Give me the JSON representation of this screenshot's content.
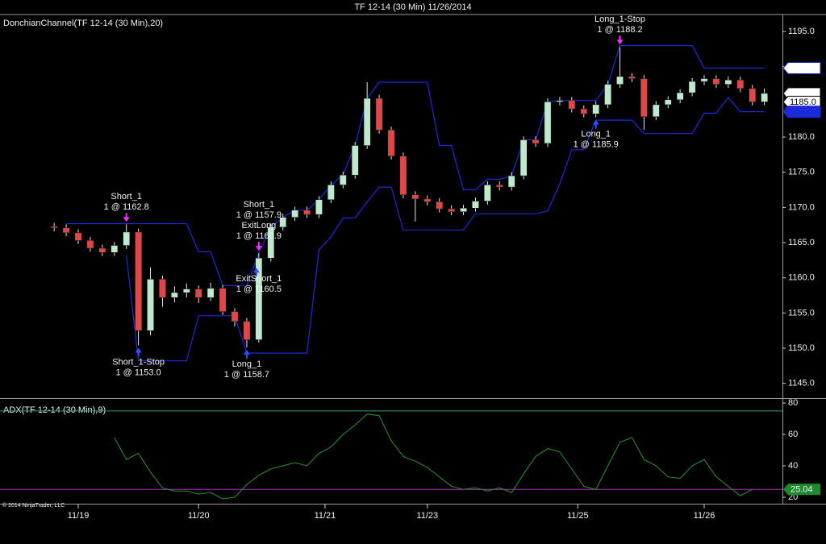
{
  "window_title": "TF 12-14 (30 Min)  11/26/2014",
  "copyright": "© 2014 NinjaTrader, LLC",
  "chart_data": [
    {
      "type": "candlestick",
      "title": "DonchianChannel(TF 12-14 (30 Min),20)",
      "xlim": [
        -4.5,
        60.5
      ],
      "xticks": [
        {
          "value": 2,
          "label": "11/19"
        },
        {
          "value": 12,
          "label": "11/20"
        },
        {
          "value": 22.5,
          "label": "11/21"
        },
        {
          "value": 31,
          "label": "11/23"
        },
        {
          "value": 43.5,
          "label": "11/25"
        },
        {
          "value": 54,
          "label": "11/26"
        }
      ],
      "ylim": [
        1142.9,
        1197.3
      ],
      "yticks": [
        {
          "value": 1145,
          "label": "1145.0"
        },
        {
          "value": 1150,
          "label": "1150.0"
        },
        {
          "value": 1155,
          "label": "1155.0"
        },
        {
          "value": 1160,
          "label": "1160.0"
        },
        {
          "value": 1165,
          "label": "1165.0"
        },
        {
          "value": 1170,
          "label": "1170.0"
        },
        {
          "value": 1175,
          "label": "1175.0"
        },
        {
          "value": 1180,
          "label": "1180.0"
        },
        {
          "value": 1185,
          "label": "1185.0"
        },
        {
          "value": 1190,
          "label": "1190.0"
        },
        {
          "value": 1195,
          "label": "1195.0"
        }
      ],
      "up_color": "#bfe8cc",
      "down_color": "#e04848",
      "wick_color": "#e8e8e8",
      "open": [
        1167.3,
        1167.1,
        1166.4,
        1165.3,
        1164.2,
        1163.6,
        1164.6,
        1166.5,
        1152.5,
        1159.8,
        1157.2,
        1157.9,
        1158.4,
        1157.2,
        1158.5,
        1155.2,
        1153.8,
        1151.2,
        1162.8,
        1167.2,
        1168.6,
        1169.6,
        1169.0,
        1171.1,
        1173.2,
        1174.6,
        1178.8,
        1185.5,
        1181.0,
        1177.3,
        1171.8,
        1171.2,
        1170.8,
        1169.8,
        1169.4,
        1169.9,
        1170.9,
        1173.2,
        1172.9,
        1174.5,
        1179.6,
        1179.1,
        1185.0,
        1185.2,
        1184.0,
        1183.3,
        1184.6,
        1187.5,
        1188.6,
        1188.3,
        1182.9,
        1184.6,
        1185.3,
        1186.3,
        1187.9,
        1188.3,
        1187.5,
        1188.1,
        1186.9,
        1185.0
      ],
      "high": [
        1167.8,
        1167.6,
        1166.9,
        1165.8,
        1164.7,
        1165.1,
        1167.6,
        1167.0,
        1161.5,
        1160.3,
        1158.8,
        1159.2,
        1158.9,
        1159.3,
        1159.0,
        1155.7,
        1154.3,
        1163.5,
        1167.7,
        1169.1,
        1170.1,
        1170.1,
        1171.6,
        1173.7,
        1175.1,
        1179.3,
        1187.8,
        1186.0,
        1181.5,
        1177.8,
        1172.3,
        1171.7,
        1171.3,
        1170.3,
        1170.4,
        1171.4,
        1173.7,
        1173.7,
        1175.0,
        1180.1,
        1180.1,
        1185.5,
        1185.7,
        1185.7,
        1184.5,
        1185.1,
        1188.0,
        1192.8,
        1189.1,
        1188.8,
        1185.1,
        1185.8,
        1186.8,
        1188.4,
        1188.8,
        1188.8,
        1188.6,
        1188.6,
        1187.4,
        1186.9
      ],
      "low": [
        1166.6,
        1165.9,
        1164.8,
        1163.7,
        1163.1,
        1163.1,
        1164.1,
        1150.4,
        1151.8,
        1155.9,
        1156.5,
        1157.2,
        1156.4,
        1156.7,
        1154.7,
        1153.1,
        1150.1,
        1150.8,
        1162.3,
        1166.7,
        1168.1,
        1168.5,
        1168.5,
        1170.6,
        1172.7,
        1174.1,
        1178.3,
        1180.5,
        1176.8,
        1171.3,
        1168.0,
        1170.3,
        1169.3,
        1168.9,
        1168.9,
        1169.4,
        1170.4,
        1172.4,
        1172.4,
        1174.0,
        1178.6,
        1178.6,
        1184.5,
        1183.5,
        1182.8,
        1182.8,
        1184.1,
        1187.0,
        1187.8,
        1181.0,
        1182.4,
        1184.1,
        1184.8,
        1185.8,
        1187.4,
        1187.0,
        1187.0,
        1186.4,
        1184.5,
        1184.5
      ],
      "close": [
        1167.1,
        1166.4,
        1165.3,
        1164.2,
        1163.6,
        1164.6,
        1166.5,
        1152.5,
        1159.8,
        1157.2,
        1157.9,
        1158.4,
        1157.2,
        1158.5,
        1155.2,
        1153.8,
        1151.2,
        1162.8,
        1167.2,
        1168.6,
        1169.6,
        1169.0,
        1171.1,
        1173.2,
        1174.6,
        1178.8,
        1185.5,
        1181.0,
        1177.3,
        1171.8,
        1171.2,
        1170.8,
        1169.8,
        1169.4,
        1169.9,
        1170.9,
        1173.2,
        1172.9,
        1174.5,
        1179.6,
        1179.1,
        1185.0,
        1185.2,
        1184.0,
        1183.3,
        1184.6,
        1187.5,
        1188.6,
        1188.3,
        1182.9,
        1184.6,
        1185.3,
        1186.3,
        1187.9,
        1188.3,
        1187.5,
        1188.1,
        1186.9,
        1185.0,
        1186.2
      ],
      "channel": {
        "color": "#1c2ad8",
        "upper": [
          null,
          1167.7,
          1167.7,
          1167.7,
          1167.7,
          1167.7,
          1167.7,
          1167.7,
          1167.7,
          1167.7,
          1167.7,
          1167.7,
          1163.7,
          1163.7,
          1158.9,
          1158.9,
          1158.9,
          1163.5,
          1167.2,
          1168.6,
          1169.6,
          1169.6,
          1171.1,
          1173.2,
          1174.6,
          1178.8,
          1185.5,
          1187.8,
          1187.8,
          1187.8,
          1187.8,
          1187.8,
          1178.8,
          1178.8,
          1172.5,
          1172.5,
          1174.0,
          1174.0,
          1174.5,
          1179.6,
          1179.6,
          1185.0,
          1185.2,
          1185.2,
          1185.2,
          1185.2,
          1187.5,
          1193.0,
          1193.0,
          1193.0,
          1193.0,
          1193.0,
          1193.0,
          1193.0,
          1189.8,
          1189.8,
          1189.8,
          1189.8,
          1189.8,
          1189.8
        ],
        "lower": [
          null,
          null,
          null,
          null,
          null,
          null,
          1163.2,
          1148.2,
          1148.2,
          1148.2,
          1148.2,
          1148.2,
          1154.6,
          1154.6,
          1154.6,
          1154.6,
          1149.3,
          1149.3,
          1149.3,
          1149.3,
          1149.3,
          1149.3,
          1164.0,
          1165.8,
          1168.5,
          1168.5,
          1170.8,
          1172.9,
          1172.9,
          1166.8,
          1166.8,
          1166.8,
          1166.8,
          1166.8,
          1166.8,
          1169.1,
          1169.1,
          1169.1,
          1169.1,
          1169.1,
          1169.1,
          1169.5,
          1173.3,
          1178.2,
          1178.2,
          1182.4,
          1182.4,
          1182.4,
          1182.4,
          1180.5,
          1180.5,
          1180.5,
          1180.5,
          1180.5,
          1183.4,
          1183.4,
          1185.6,
          1183.6,
          1183.6,
          1183.6
        ]
      },
      "price_tags": [
        {
          "value": 1189.8,
          "color": "#1c2ad8",
          "fill": "#ffffff"
        },
        {
          "value": 1186.2,
          "color": "#000000",
          "fill": "#ffffff"
        },
        {
          "value": 1185,
          "label": "1185.0",
          "color": "#000000",
          "fill": "#ffffff"
        },
        {
          "value": 1183.6,
          "color": "#ffffff",
          "fill": "#1c2ad8"
        }
      ],
      "trades": [
        {
          "bar": 6,
          "side": "above",
          "color": "#ff30ff",
          "lines": [
            "Short_1",
            "1 @ 1162.8"
          ]
        },
        {
          "bar": 7,
          "side": "below",
          "color": "#3050ff",
          "lines": [
            "Short_1-Stop",
            "1 @ 1153.0"
          ]
        },
        {
          "bar": 16,
          "side": "below",
          "color": "#3050ff",
          "lines": [
            "Long_1",
            "1 @ 1158.7"
          ]
        },
        {
          "bar": 17,
          "side": "above",
          "color": "#ff30ff",
          "lines": [
            "Short_1",
            "1 @ 1157.9",
            "ExitLong",
            "1 @ 1160.9"
          ]
        },
        {
          "bar": 17,
          "side": "left",
          "color": "#3050ff",
          "lines": [
            "ExitShort_1",
            "1 @ 1160.5"
          ]
        },
        {
          "bar": 45,
          "side": "below",
          "color": "#3050ff",
          "lines": [
            "Long_1",
            "1 @ 1185.9"
          ]
        },
        {
          "bar": 47,
          "side": "above",
          "color": "#ff30ff",
          "lines": [
            "Long_1-Stop",
            "1 @ 1188.2"
          ]
        }
      ]
    },
    {
      "type": "line",
      "title": "ADX(TF 12-14 (30 Min),9)",
      "color": "#2f8f2f",
      "ylim": [
        15.9,
        82.6
      ],
      "yticks": [
        20,
        40,
        60,
        80
      ],
      "levels": [
        {
          "value": 75,
          "color": "#3c9a5a"
        },
        {
          "value": 25,
          "color": "#b030c0"
        }
      ],
      "last_value": 25.04,
      "last_color": "#1e8a2e",
      "values": [
        null,
        null,
        null,
        null,
        null,
        58,
        44,
        48,
        36,
        26,
        24,
        24,
        22,
        23,
        19,
        20,
        28,
        34,
        38,
        40,
        42,
        40,
        48,
        52,
        60,
        66,
        73,
        72,
        56,
        46,
        43,
        39,
        33,
        27,
        25,
        26,
        24,
        26,
        23,
        35,
        46,
        51,
        49,
        38,
        27,
        25,
        40,
        55,
        58,
        44,
        40,
        33,
        32,
        40,
        44,
        33,
        27,
        21,
        25,
        null
      ]
    }
  ]
}
